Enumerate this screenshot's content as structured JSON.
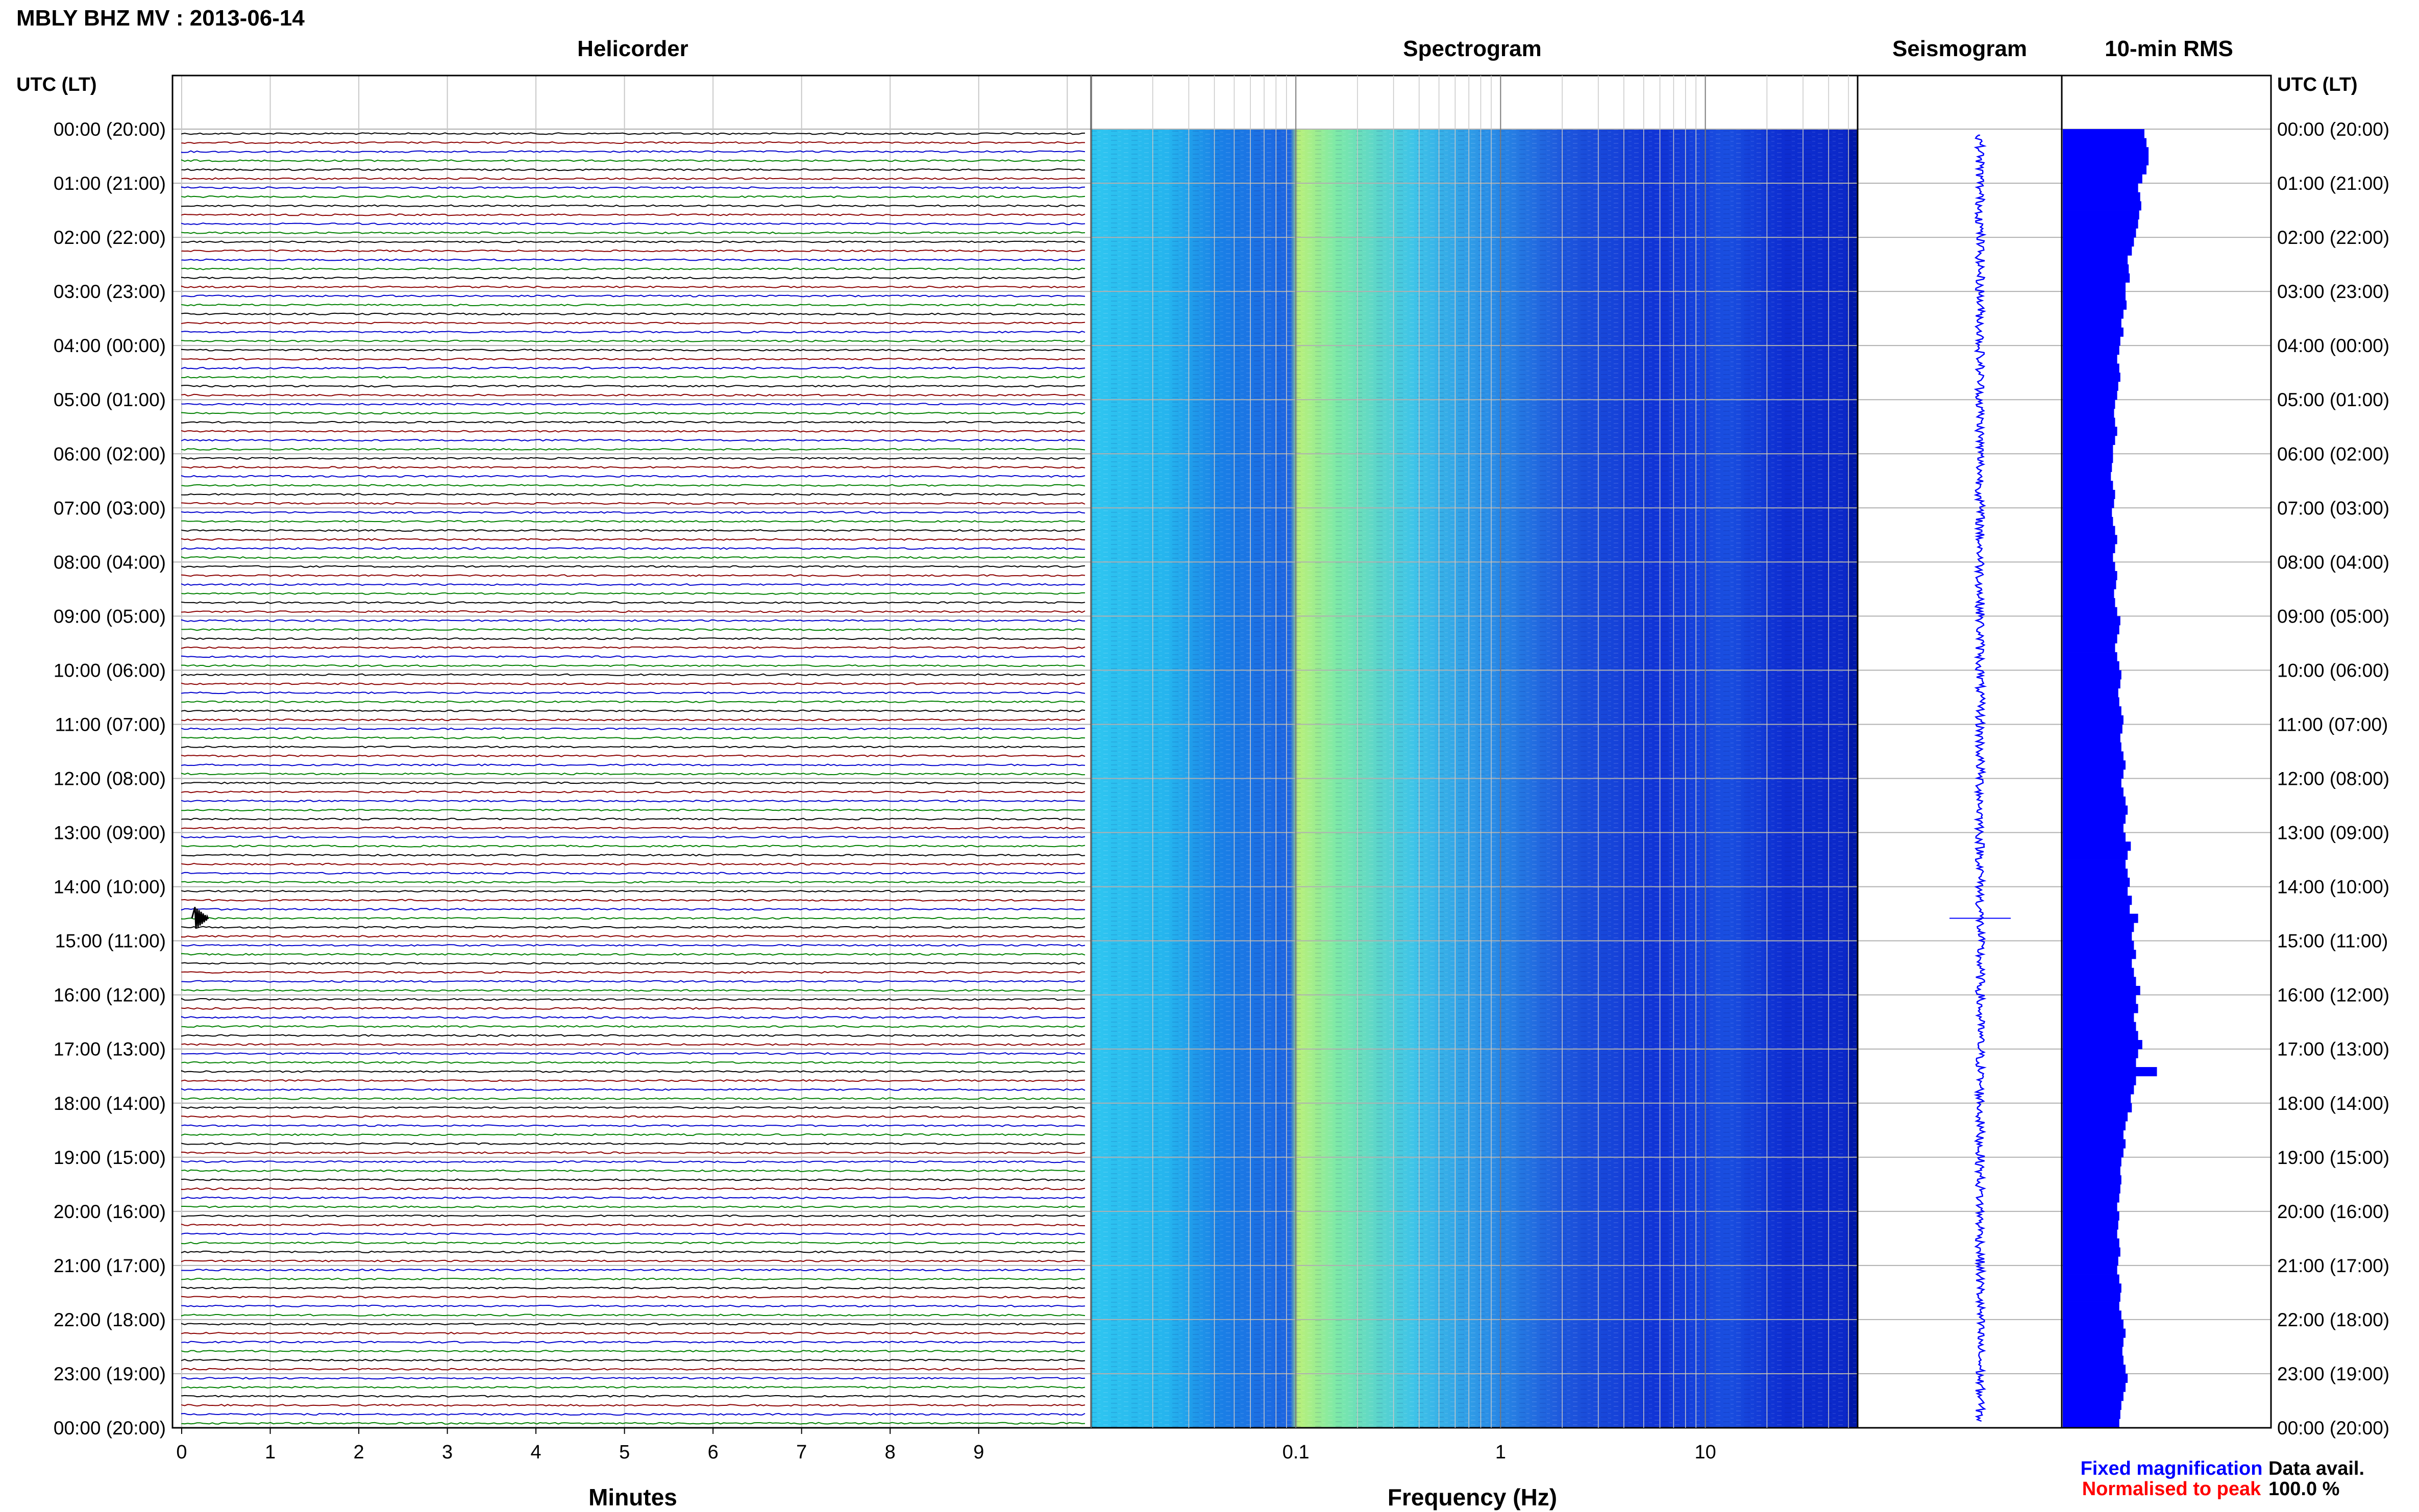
{
  "figure_title": "MBLY BHZ MV : 2013-06-14",
  "panels": {
    "helicorder": "Helicorder",
    "spectrogram": "Spectrogram",
    "seismogram": "Seismogram",
    "rms": "10-min RMS"
  },
  "axis_labels": {
    "time_left": "UTC (LT)",
    "time_right": "UTC (LT)",
    "helicorder_x": "Minutes",
    "spectrogram_x": "Frequency (Hz)"
  },
  "legend": {
    "fixed": "Fixed magnification",
    "normalised": "Normalised to peak",
    "fixed_color": "#0000ff",
    "normalised_color": "#ff0000"
  },
  "data_availability": {
    "label": "Data avail.",
    "value": "100.0 %"
  },
  "colors": {
    "trace_cycle": [
      "#000000",
      "#8b0000",
      "#0000cd",
      "#008000"
    ],
    "spectrogram_low": "#0000ff",
    "spectrogram_mid": "#00ffff",
    "spectrogram_high": "#ffff00",
    "rms_bar": "#0000ff",
    "seismogram": "#0000ff"
  },
  "chart_data": [
    {
      "type": "line",
      "name": "helicorder",
      "title": "Helicorder",
      "xlabel": "Minutes",
      "x_ticks": [
        "0",
        "1",
        "2",
        "3",
        "4",
        "5",
        "6",
        "7",
        "8",
        "9"
      ],
      "xlim": [
        0,
        10
      ],
      "rows": 144,
      "y_ticks": [
        "00:00 (20:00)",
        "01:00 (21:00)",
        "02:00 (22:00)",
        "03:00 (23:00)",
        "04:00 (00:00)",
        "05:00 (01:00)",
        "06:00 (02:00)",
        "07:00 (03:00)",
        "08:00 (04:00)",
        "09:00 (05:00)",
        "10:00 (06:00)",
        "11:00 (07:00)",
        "12:00 (08:00)",
        "13:00 (09:00)",
        "14:00 (10:00)",
        "15:00 (11:00)",
        "16:00 (12:00)",
        "17:00 (13:00)",
        "18:00 (14:00)",
        "19:00 (15:00)",
        "20:00 (16:00)",
        "21:00 (17:00)",
        "22:00 (18:00)",
        "23:00 (19:00)",
        "00:00 (20:00)"
      ],
      "events": [
        {
          "row": 87,
          "minute": 0.15,
          "amplitude": 1.0
        }
      ]
    },
    {
      "type": "heatmap",
      "name": "spectrogram",
      "title": "Spectrogram",
      "xlabel": "Frequency (Hz)",
      "x_scale": "log",
      "xlim": [
        0.01,
        50
      ],
      "x_ticks": [
        0.1,
        1,
        10
      ],
      "x_tick_labels": [
        "0.1",
        "1",
        "10"
      ],
      "peak_band_hz": [
        0.18,
        0.5
      ],
      "colormap": "jet"
    },
    {
      "type": "line",
      "name": "seismogram",
      "title": "Seismogram",
      "spike_at_utc": "14:35"
    },
    {
      "type": "bar",
      "name": "rms",
      "title": "10-min RMS",
      "orientation": "horizontal",
      "bins": 144,
      "values": [
        0.78,
        0.8,
        0.82,
        0.82,
        0.8,
        0.76,
        0.72,
        0.74,
        0.75,
        0.73,
        0.72,
        0.7,
        0.68,
        0.66,
        0.62,
        0.63,
        0.64,
        0.6,
        0.6,
        0.61,
        0.58,
        0.56,
        0.58,
        0.55,
        0.54,
        0.52,
        0.54,
        0.55,
        0.53,
        0.52,
        0.5,
        0.49,
        0.5,
        0.52,
        0.5,
        0.48,
        0.48,
        0.47,
        0.46,
        0.48,
        0.5,
        0.49,
        0.47,
        0.48,
        0.5,
        0.52,
        0.5,
        0.48,
        0.5,
        0.52,
        0.51,
        0.49,
        0.5,
        0.52,
        0.55,
        0.54,
        0.52,
        0.5,
        0.52,
        0.54,
        0.56,
        0.55,
        0.53,
        0.54,
        0.56,
        0.58,
        0.57,
        0.55,
        0.56,
        0.58,
        0.6,
        0.58,
        0.56,
        0.58,
        0.6,
        0.62,
        0.6,
        0.58,
        0.6,
        0.65,
        0.62,
        0.6,
        0.62,
        0.64,
        0.62,
        0.66,
        0.64,
        0.72,
        0.68,
        0.66,
        0.68,
        0.7,
        0.66,
        0.68,
        0.7,
        0.74,
        0.7,
        0.72,
        0.68,
        0.7,
        0.72,
        0.76,
        0.72,
        0.7,
        0.9,
        0.7,
        0.68,
        0.65,
        0.66,
        0.62,
        0.6,
        0.58,
        0.6,
        0.58,
        0.56,
        0.55,
        0.56,
        0.55,
        0.54,
        0.52,
        0.54,
        0.53,
        0.52,
        0.54,
        0.55,
        0.53,
        0.52,
        0.54,
        0.56,
        0.55,
        0.54,
        0.56,
        0.58,
        0.6,
        0.58,
        0.57,
        0.58,
        0.6,
        0.62,
        0.6,
        0.58,
        0.56,
        0.55,
        0.54
      ],
      "xlim": [
        0,
        1
      ]
    }
  ]
}
